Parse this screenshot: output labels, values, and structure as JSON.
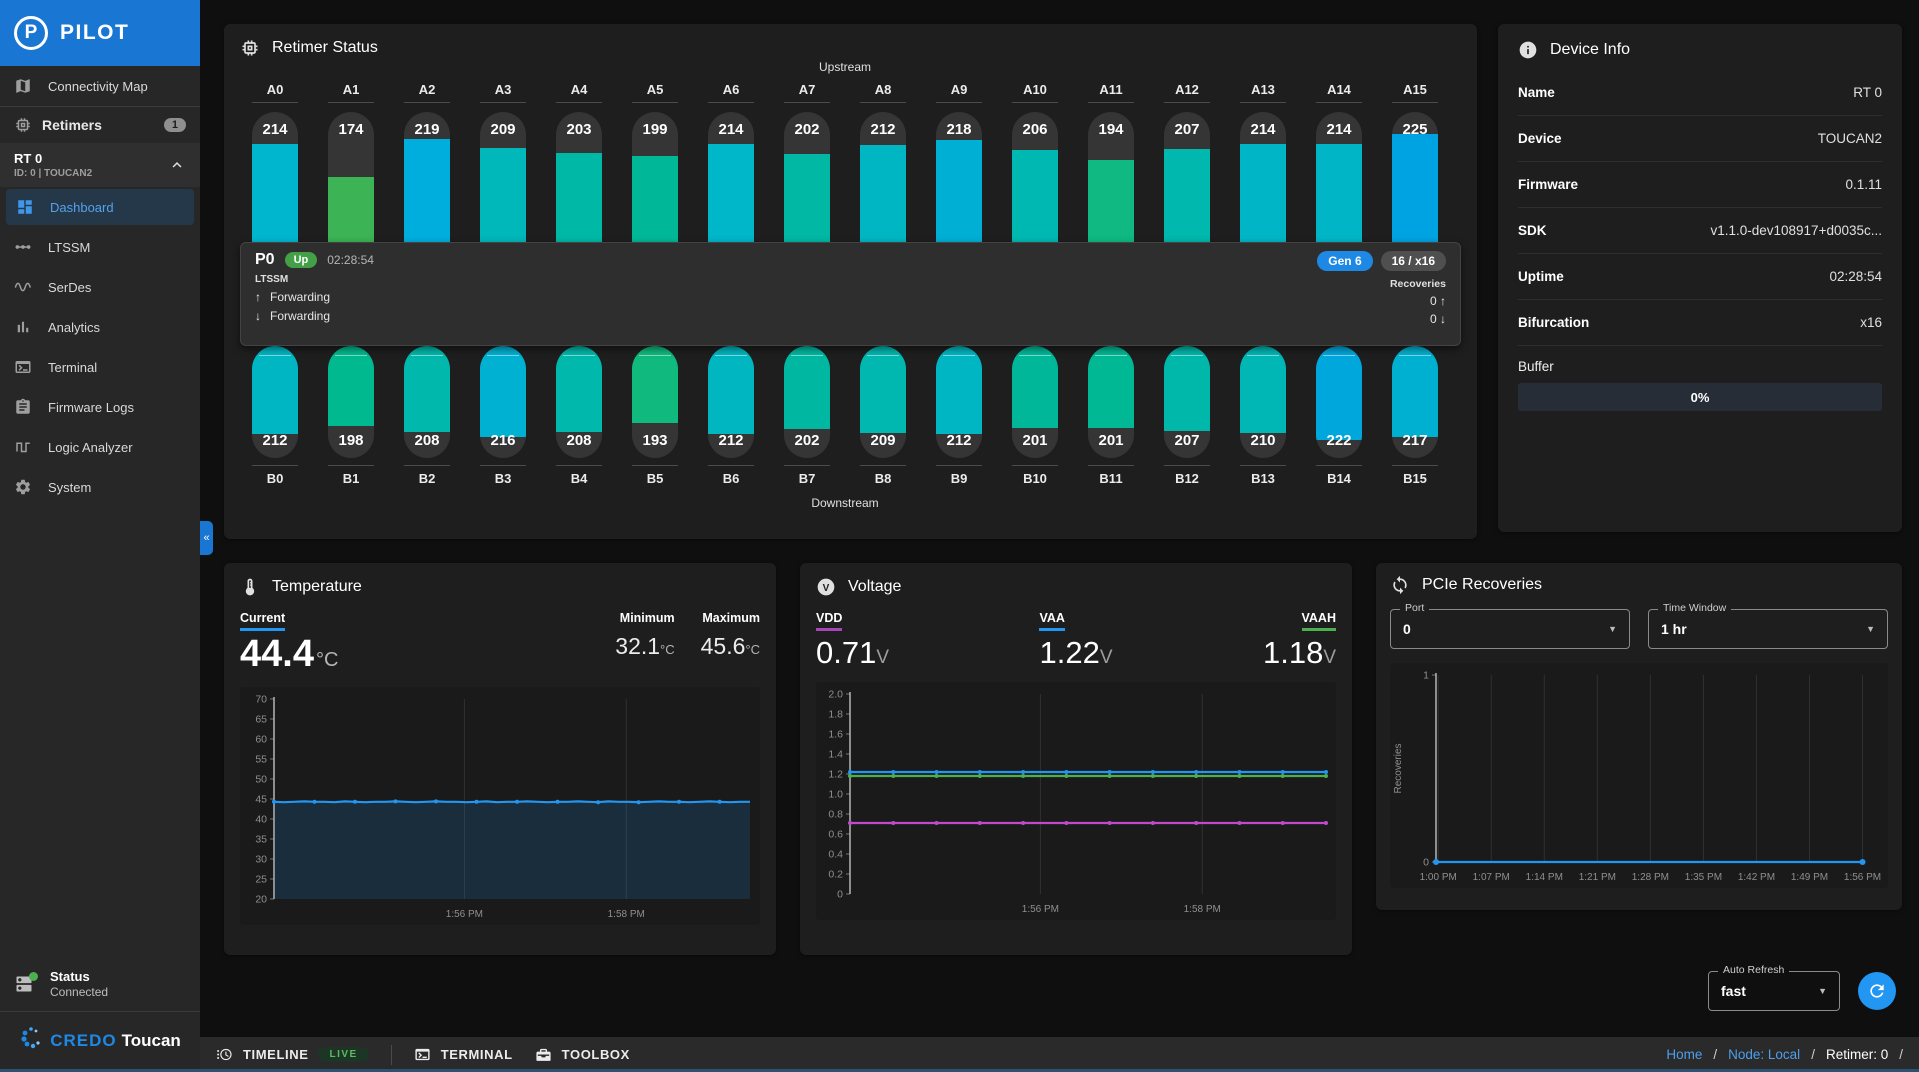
{
  "sidebar": {
    "logo_text": "PILOT",
    "connectivity_map": "Connectivity Map",
    "retimers_label": "Retimers",
    "retimers_badge": "1",
    "device_tree": {
      "name": "RT 0",
      "subtitle": "ID: 0 | TOUCAN2"
    },
    "nav_items": [
      {
        "label": "Dashboard",
        "icon": "dashboard",
        "active": true
      },
      {
        "label": "LTSSM",
        "icon": "ltssm",
        "active": false
      },
      {
        "label": "SerDes",
        "icon": "serdes",
        "active": false
      },
      {
        "label": "Analytics",
        "icon": "analytics",
        "active": false
      },
      {
        "label": "Terminal",
        "icon": "terminal",
        "active": false
      },
      {
        "label": "Firmware Logs",
        "icon": "firmware",
        "active": false
      },
      {
        "label": "Logic Analyzer",
        "icon": "logic",
        "active": false
      },
      {
        "label": "System",
        "icon": "gear",
        "active": false
      }
    ],
    "status": {
      "label": "Status",
      "value": "Connected"
    },
    "brand": {
      "credo": "CREDO",
      "toucan": "Toucan"
    }
  },
  "retimer_status": {
    "title": "Retimer Status",
    "upstream_label": "Upstream",
    "downstream_label": "Downstream",
    "upstream": [
      {
        "label": "A0",
        "value": 214,
        "color": "#00b6cf"
      },
      {
        "label": "A1",
        "value": 174,
        "color": "#3cb355"
      },
      {
        "label": "A2",
        "value": 219,
        "color": "#00aede"
      },
      {
        "label": "A3",
        "value": 209,
        "color": "#00b7b9"
      },
      {
        "label": "A4",
        "value": 203,
        "color": "#00b8a6"
      },
      {
        "label": "A5",
        "value": 199,
        "color": "#00b897"
      },
      {
        "label": "A6",
        "value": 214,
        "color": "#00b6c9"
      },
      {
        "label": "A7",
        "value": 202,
        "color": "#00b8a4"
      },
      {
        "label": "A8",
        "value": 212,
        "color": "#00b6c2"
      },
      {
        "label": "A9",
        "value": 218,
        "color": "#00afd4"
      },
      {
        "label": "A10",
        "value": 206,
        "color": "#00b8b2"
      },
      {
        "label": "A11",
        "value": 194,
        "color": "#0fb981"
      },
      {
        "label": "A12",
        "value": 207,
        "color": "#00b8ad"
      },
      {
        "label": "A13",
        "value": 214,
        "color": "#00b6c6"
      },
      {
        "label": "A14",
        "value": 214,
        "color": "#00b6c6"
      },
      {
        "label": "A15",
        "value": 225,
        "color": "#00a3e2"
      }
    ],
    "downstream": [
      {
        "label": "B0",
        "value": 212,
        "color": "#00b6c2"
      },
      {
        "label": "B1",
        "value": 198,
        "color": "#00b98e"
      },
      {
        "label": "B2",
        "value": 208,
        "color": "#00b8ab"
      },
      {
        "label": "B3",
        "value": 216,
        "color": "#00b1d2"
      },
      {
        "label": "B4",
        "value": 208,
        "color": "#00b8ab"
      },
      {
        "label": "B5",
        "value": 193,
        "color": "#10b97d"
      },
      {
        "label": "B6",
        "value": 212,
        "color": "#00b6c0"
      },
      {
        "label": "B7",
        "value": 202,
        "color": "#00b8a1"
      },
      {
        "label": "B8",
        "value": 209,
        "color": "#00b8b0"
      },
      {
        "label": "B9",
        "value": 212,
        "color": "#00b6c3"
      },
      {
        "label": "B10",
        "value": 201,
        "color": "#00b899"
      },
      {
        "label": "B11",
        "value": 201,
        "color": "#00b894"
      },
      {
        "label": "B12",
        "value": 207,
        "color": "#00b8aa"
      },
      {
        "label": "B13",
        "value": 210,
        "color": "#00b7b5"
      },
      {
        "label": "B14",
        "value": 222,
        "color": "#00a7dc"
      },
      {
        "label": "B15",
        "value": 217,
        "color": "#00b0d0"
      }
    ],
    "port": {
      "name": "P0",
      "state": "Up",
      "uptime": "02:28:54",
      "ltssm_label": "LTSSM",
      "ltssm_up": "Forwarding",
      "ltssm_down": "Forwarding",
      "gen_badge": "Gen 6",
      "lane_badge": "16 / x16",
      "recoveries_label": "Recoveries",
      "recoveries_up": "0",
      "recoveries_down": "0"
    }
  },
  "device_info": {
    "title": "Device Info",
    "rows": [
      {
        "label": "Name",
        "value": "RT 0"
      },
      {
        "label": "Device",
        "value": "TOUCAN2"
      },
      {
        "label": "Firmware",
        "value": "0.1.11"
      },
      {
        "label": "SDK",
        "value": "v1.1.0-dev108917+d0035c..."
      },
      {
        "label": "Uptime",
        "value": "02:28:54"
      },
      {
        "label": "Bifurcation",
        "value": "x16"
      }
    ],
    "buffer_label": "Buffer",
    "buffer_value": "0%"
  },
  "temperature": {
    "title": "Temperature",
    "current_label": "Current",
    "current_value": "44.4",
    "unit": "°C",
    "min_label": "Minimum",
    "min_value": "32.1",
    "max_label": "Maximum",
    "max_value": "45.6"
  },
  "voltage": {
    "title": "Voltage",
    "rails": [
      {
        "label": "VDD",
        "value": "0.71",
        "unit": "V",
        "color": "#a645b8"
      },
      {
        "label": "VAA",
        "value": "1.22",
        "unit": "V",
        "color": "#2196f3"
      },
      {
        "label": "VAAH",
        "value": "1.18",
        "unit": "V",
        "color": "#4caf50"
      }
    ]
  },
  "pcie_recoveries": {
    "title": "PCIe Recoveries",
    "port_label": "Port",
    "port_value": "0",
    "window_label": "Time Window",
    "window_value": "1 hr"
  },
  "auto_refresh": {
    "label": "Auto Refresh",
    "value": "fast"
  },
  "bottom_bar": {
    "timeline": "TIMELINE",
    "live": "LIVE",
    "terminal": "TERMINAL",
    "toolbox": "TOOLBOX",
    "breadcrumb": [
      {
        "label": "Home",
        "link": true
      },
      {
        "label": "Node: Local",
        "link": true
      },
      {
        "label": "Retimer: 0",
        "link": false
      }
    ]
  },
  "chart_data": [
    {
      "id": "temperature-chart",
      "type": "line",
      "title": "Temperature (°C)",
      "ylim": [
        20,
        70
      ],
      "yticks": [
        "70",
        "65",
        "60",
        "55",
        "50",
        "45",
        "40",
        "35",
        "30",
        "25",
        "20"
      ],
      "xticks": [
        "1:56 PM",
        "1:58 PM"
      ],
      "xtick_pos": [
        0.4,
        0.74
      ],
      "grid": "vertical",
      "legend": "none",
      "series": [
        {
          "name": "Temperature",
          "color": "#2196f3",
          "fill": "rgba(33,150,243,0.16)",
          "marker_every": 4,
          "values": [
            44.3,
            44.2,
            44.3,
            44.4,
            44.3,
            44.3,
            44.2,
            44.4,
            44.3,
            44.2,
            44.3,
            44.3,
            44.4,
            44.3,
            44.2,
            44.3,
            44.4,
            44.3,
            44.3,
            44.2,
            44.3,
            44.4,
            44.2,
            44.3,
            44.3,
            44.4,
            44.3,
            44.2,
            44.3,
            44.3,
            44.4,
            44.3,
            44.2,
            44.4,
            44.3,
            44.3,
            44.2,
            44.3,
            44.4,
            44.3,
            44.3,
            44.2,
            44.3,
            44.4,
            44.3,
            44.2,
            44.3,
            44.3
          ]
        }
      ]
    },
    {
      "id": "voltage-chart",
      "type": "line",
      "title": "Voltage (V)",
      "ylim": [
        0,
        2.0
      ],
      "yticks": [
        "2.0",
        "1.8",
        "1.6",
        "1.4",
        "1.2",
        "1.0",
        "0.8",
        "0.6",
        "0.4",
        "0.2",
        "0"
      ],
      "xticks": [
        "1:56 PM",
        "1:58 PM"
      ],
      "xtick_pos": [
        0.4,
        0.74
      ],
      "grid": "vertical",
      "legend": "none",
      "series": [
        {
          "name": "VAA",
          "color": "#2196f3",
          "marker_every": 1,
          "values": [
            1.22,
            1.22,
            1.22,
            1.22,
            1.22,
            1.22,
            1.22,
            1.22,
            1.22,
            1.22,
            1.22,
            1.22
          ]
        },
        {
          "name": "VAAH",
          "color": "#4caf50",
          "marker_every": 1,
          "values": [
            1.18,
            1.18,
            1.18,
            1.18,
            1.18,
            1.18,
            1.18,
            1.18,
            1.18,
            1.18,
            1.18,
            1.18
          ]
        },
        {
          "name": "VDD",
          "color": "#c04ac9",
          "marker_every": 1,
          "values": [
            0.71,
            0.71,
            0.71,
            0.71,
            0.71,
            0.71,
            0.71,
            0.71,
            0.71,
            0.71,
            0.71,
            0.71
          ]
        }
      ]
    },
    {
      "id": "recoveries-chart",
      "type": "line",
      "title": "PCIe Recoveries",
      "ylabel": "Recoveries",
      "ylim": [
        0,
        1
      ],
      "yticks": [
        "1",
        "0"
      ],
      "xticks": [
        "1:00 PM",
        "1:07 PM",
        "1:14 PM",
        "1:21 PM",
        "1:28 PM",
        "1:35 PM",
        "1:42 PM",
        "1:49 PM",
        "1:56 PM"
      ],
      "xtick_pos": [
        0.005,
        0.125,
        0.245,
        0.365,
        0.485,
        0.605,
        0.725,
        0.845,
        0.965
      ],
      "xspan": 0.965,
      "grid": "vertical",
      "legend": "none",
      "series": [
        {
          "name": "Recoveries",
          "color": "#2196f3",
          "markers": "ends",
          "values": [
            0,
            0,
            0,
            0,
            0,
            0,
            0,
            0,
            0,
            0
          ]
        }
      ]
    }
  ]
}
